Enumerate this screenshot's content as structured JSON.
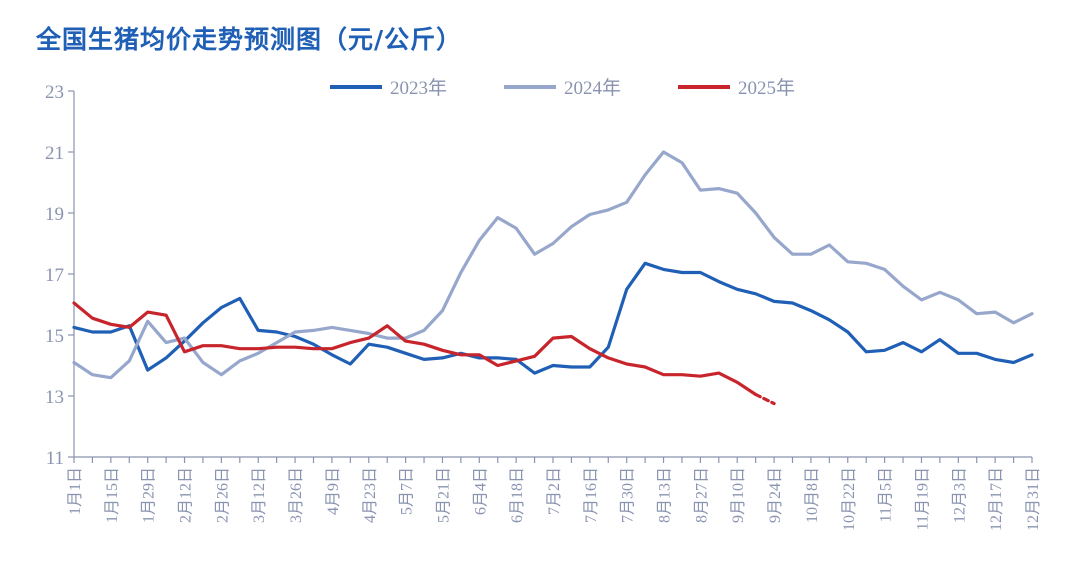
{
  "chart_data": {
    "type": "line",
    "title": "全国生猪均价走势预测图（元/公斤）",
    "xlabel": "",
    "ylabel": "",
    "ylim": [
      11,
      23
    ],
    "yticks": [
      11,
      13,
      15,
      17,
      19,
      21,
      23
    ],
    "legend_position": "top",
    "x_tick_labels": [
      "1月1日",
      "1月15日",
      "1月29日",
      "2月12日",
      "2月26日",
      "3月12日",
      "3月26日",
      "4月9日",
      "4月23日",
      "5月7日",
      "5月21日",
      "6月4日",
      "6月18日",
      "7月2日",
      "7月16日",
      "7月30日",
      "8月13日",
      "8月27日",
      "9月10日",
      "9月24日",
      "10月8日",
      "10月22日",
      "11月5日",
      "11月19日",
      "12月3日",
      "12月17日",
      "12月31日"
    ],
    "x_point_count": 53,
    "series": [
      {
        "name": "2023年",
        "color": "#1f5fb5",
        "values": [
          15.25,
          15.1,
          15.1,
          15.3,
          13.85,
          14.25,
          14.8,
          15.4,
          15.9,
          16.2,
          15.15,
          15.1,
          14.95,
          14.7,
          14.35,
          14.05,
          14.7,
          14.6,
          14.4,
          14.2,
          14.25,
          14.4,
          14.25,
          14.25,
          14.2,
          13.75,
          14.0,
          13.95,
          13.95,
          14.6,
          16.5,
          17.35,
          17.15,
          17.05,
          17.05,
          16.75,
          16.5,
          16.35,
          16.1,
          16.05,
          15.8,
          15.5,
          15.1,
          14.45,
          14.5,
          14.75,
          14.45,
          14.85,
          14.4,
          14.4,
          14.2,
          14.1,
          14.35
        ]
      },
      {
        "name": "2024年",
        "color": "#97a7cc",
        "values": [
          14.1,
          13.7,
          13.6,
          14.15,
          15.45,
          14.75,
          14.9,
          14.1,
          13.7,
          14.15,
          14.4,
          14.75,
          15.1,
          15.15,
          15.25,
          15.15,
          15.05,
          14.9,
          14.9,
          15.15,
          15.8,
          17.05,
          18.1,
          18.85,
          18.5,
          17.65,
          18.0,
          18.55,
          18.95,
          19.1,
          19.35,
          20.25,
          21.0,
          20.65,
          19.75,
          19.8,
          19.65,
          19.0,
          18.2,
          17.65,
          17.65,
          17.95,
          17.4,
          17.35,
          17.15,
          16.6,
          16.15,
          16.4,
          16.15,
          15.7,
          15.75,
          15.4,
          15.7
        ]
      },
      {
        "name": "2025年",
        "color": "#c8242b",
        "values": [
          16.05,
          15.55,
          15.35,
          15.25,
          15.75,
          15.65,
          14.45,
          14.65,
          14.65,
          14.55,
          14.55,
          14.6,
          14.6,
          14.55,
          14.55,
          14.75,
          14.9,
          15.3,
          14.8,
          14.7,
          14.5,
          14.35,
          14.35,
          14.0,
          14.15,
          14.3,
          14.9,
          14.95,
          14.55,
          14.25,
          14.05,
          13.95,
          13.7,
          13.7,
          13.65,
          13.75,
          13.45,
          13.05
        ],
        "dashed_extension": [
          [
            37,
            13.05
          ],
          [
            38,
            12.75
          ]
        ]
      }
    ]
  }
}
